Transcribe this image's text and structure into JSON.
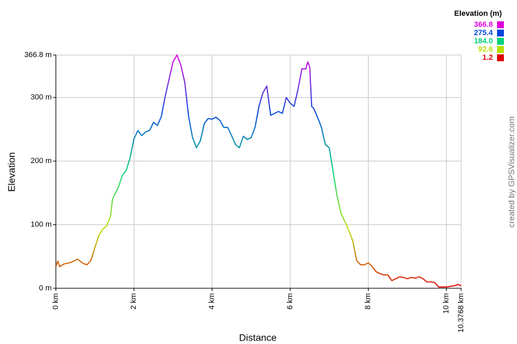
{
  "chart_data": {
    "type": "line",
    "x_label": "Distance",
    "y_label": "Elevation",
    "credit": "created by GPSVisualizer.com",
    "legend_title": "Elevation (m)",
    "color_scale": [
      {
        "value": 366.8,
        "label": "366.8",
        "color": "#dd00dd"
      },
      {
        "value": 275.4,
        "label": "275.4",
        "color": "#0044dd"
      },
      {
        "value": 184,
        "label": "184.0",
        "color": "#00d27a"
      },
      {
        "value": 92.6,
        "label": "92.6",
        "color": "#b8e000"
      },
      {
        "value": 1.2,
        "label": "1.2",
        "color": "#dd0000"
      }
    ],
    "xlim": [
      0,
      10.3768
    ],
    "ylim": [
      0,
      366.8
    ],
    "xticks": [
      {
        "value": 0,
        "label": "0 km"
      },
      {
        "value": 2,
        "label": "2 km"
      },
      {
        "value": 4,
        "label": "4 km"
      },
      {
        "value": 6,
        "label": "6 km"
      },
      {
        "value": 8,
        "label": "8 km"
      },
      {
        "value": 10,
        "label": "10 km"
      },
      {
        "value": 10.3768,
        "label": "10.3768 km"
      }
    ],
    "yticks": [
      {
        "value": 0,
        "label": "0 m"
      },
      {
        "value": 100,
        "label": "100 m"
      },
      {
        "value": 200,
        "label": "200 m"
      },
      {
        "value": 300,
        "label": "300 m"
      },
      {
        "value": 366.8,
        "label": "366.8 m"
      }
    ],
    "grid": true,
    "x": [
      0,
      0.05,
      0.1,
      0.2,
      0.4,
      0.5,
      0.55,
      0.7,
      0.8,
      0.9,
      1.0,
      1.1,
      1.2,
      1.3,
      1.4,
      1.45,
      1.6,
      1.7,
      1.8,
      1.9,
      2.0,
      2.1,
      2.2,
      2.3,
      2.4,
      2.5,
      2.6,
      2.7,
      2.8,
      2.9,
      3.0,
      3.1,
      3.2,
      3.3,
      3.4,
      3.5,
      3.6,
      3.7,
      3.8,
      3.9,
      4.0,
      4.1,
      4.2,
      4.3,
      4.4,
      4.5,
      4.6,
      4.7,
      4.8,
      4.9,
      5.0,
      5.1,
      5.2,
      5.3,
      5.4,
      5.5,
      5.6,
      5.7,
      5.8,
      5.9,
      6.0,
      6.1,
      6.2,
      6.3,
      6.4,
      6.45,
      6.5,
      6.55,
      6.6,
      6.7,
      6.8,
      6.9,
      7.0,
      7.1,
      7.2,
      7.3,
      7.4,
      7.5,
      7.6,
      7.7,
      7.8,
      7.9,
      8.0,
      8.1,
      8.2,
      8.3,
      8.4,
      8.5,
      8.6,
      8.7,
      8.8,
      8.9,
      9.0,
      9.1,
      9.2,
      9.3,
      9.4,
      9.5,
      9.6,
      9.7,
      9.8,
      9.9,
      10.0,
      10.1,
      10.2,
      10.3,
      10.3768
    ],
    "values": [
      34,
      43,
      34,
      38,
      41,
      44,
      46,
      39,
      37,
      44,
      64,
      83,
      93,
      98,
      113,
      140,
      159,
      177,
      185,
      205,
      235,
      248,
      240,
      246,
      248,
      261,
      256,
      270,
      302,
      329,
      356,
      367,
      351,
      324,
      270,
      237,
      221,
      232,
      259,
      267,
      266,
      269,
      264,
      253,
      253,
      240,
      226,
      221,
      239,
      234,
      237,
      253,
      286,
      307,
      318,
      272,
      275,
      278,
      275,
      300,
      291,
      286,
      313,
      345,
      345,
      356,
      348,
      286,
      283,
      269,
      253,
      226,
      221,
      183,
      145,
      118,
      105,
      91,
      75,
      44,
      37,
      37,
      40,
      34,
      26,
      23,
      21,
      21,
      12,
      15,
      18,
      17,
      15,
      17,
      16,
      18,
      15,
      10,
      10,
      9,
      2,
      2,
      2,
      3,
      4,
      6,
      4
    ]
  }
}
